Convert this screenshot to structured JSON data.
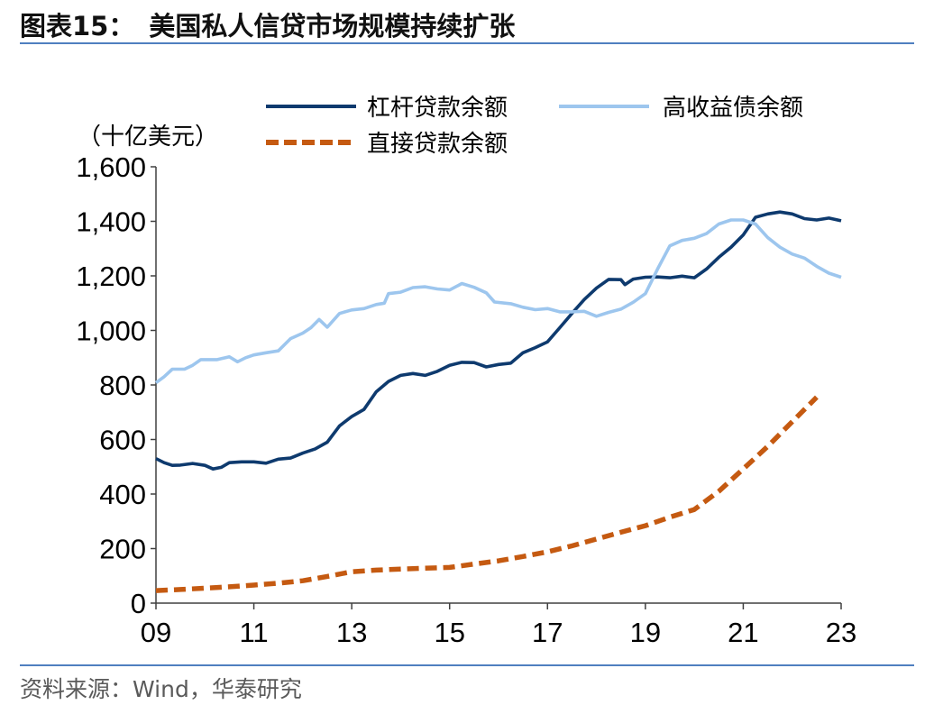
{
  "header": {
    "figure_label": "图表15："
  },
  "colors": {
    "rule": "#4f7fc0",
    "axis": "#404040",
    "source_text": "#5a5a5a"
  },
  "chart_data": {
    "type": "line",
    "title": "美国私人信贷市场规模持续扩张",
    "ylabel": "（十亿美元）",
    "xlim": [
      "2009-01",
      "2023-01"
    ],
    "ylim": [
      0,
      1600
    ],
    "x_ticks": [
      "2009-01",
      "2011-01",
      "2013-01",
      "2015-01",
      "2017-01",
      "2019-01",
      "2021-01",
      "2023-01"
    ],
    "x_tick_labels": [
      "09",
      "11",
      "13",
      "15",
      "17",
      "19",
      "21",
      "23"
    ],
    "y_ticks": [
      0,
      200,
      400,
      600,
      800,
      1000,
      1200,
      1400,
      1600
    ],
    "y_tick_labels": [
      "0",
      "200",
      "400",
      "600",
      "800",
      "1,000",
      "1,200",
      "1,400",
      "1,600"
    ],
    "grid": false,
    "legend": "top",
    "series": [
      {
        "name": "杠杆贷款余额",
        "color": "#0e3a6e",
        "dashed": false,
        "x": [
          "2009-01",
          "2009-03",
          "2009-05",
          "2009-07",
          "2009-10",
          "2010-01",
          "2010-03",
          "2010-05",
          "2010-07",
          "2010-10",
          "2011-01",
          "2011-04",
          "2011-07",
          "2011-10",
          "2012-01",
          "2012-04",
          "2012-07",
          "2012-10",
          "2013-01",
          "2013-04",
          "2013-07",
          "2013-10",
          "2014-01",
          "2014-04",
          "2014-07",
          "2014-10",
          "2015-01",
          "2015-04",
          "2015-07",
          "2015-10",
          "2016-01",
          "2016-04",
          "2016-07",
          "2016-10",
          "2017-01",
          "2017-04",
          "2017-07",
          "2017-10",
          "2018-01",
          "2018-04",
          "2018-07",
          "2018-08",
          "2018-10",
          "2019-01",
          "2019-04",
          "2019-07",
          "2019-10",
          "2020-01",
          "2020-04",
          "2020-07",
          "2020-10",
          "2021-01",
          "2021-04",
          "2021-07",
          "2021-10",
          "2022-01",
          "2022-04",
          "2022-07",
          "2022-10",
          "2023-01"
        ],
        "y": [
          530,
          515,
          505,
          506,
          512,
          505,
          492,
          498,
          515,
          518,
          518,
          513,
          528,
          532,
          550,
          565,
          590,
          650,
          684,
          710,
          775,
          813,
          835,
          842,
          835,
          850,
          872,
          883,
          882,
          866,
          875,
          880,
          918,
          937,
          958,
          1010,
          1062,
          1113,
          1155,
          1187,
          1186,
          1168,
          1188,
          1195,
          1196,
          1193,
          1199,
          1193,
          1225,
          1268,
          1305,
          1350,
          1415,
          1427,
          1434,
          1427,
          1410,
          1405,
          1412,
          1402
        ]
      },
      {
        "name": "高收益债余额",
        "color": "#9dc6ee",
        "dashed": false,
        "x": [
          "2009-01",
          "2009-03",
          "2009-05",
          "2009-08",
          "2009-10",
          "2009-12",
          "2010-04",
          "2010-07",
          "2010-09",
          "2010-11",
          "2011-01",
          "2011-04",
          "2011-07",
          "2011-10",
          "2012-01",
          "2012-03",
          "2012-05",
          "2012-07",
          "2012-10",
          "2013-01",
          "2013-04",
          "2013-07",
          "2013-09",
          "2013-10",
          "2014-01",
          "2014-04",
          "2014-07",
          "2014-10",
          "2015-01",
          "2015-04",
          "2015-07",
          "2015-10",
          "2015-12",
          "2016-04",
          "2016-07",
          "2016-10",
          "2017-01",
          "2017-04",
          "2017-07",
          "2017-10",
          "2018-01",
          "2018-04",
          "2018-07",
          "2018-10",
          "2019-01",
          "2019-04",
          "2019-07",
          "2019-10",
          "2020-01",
          "2020-04",
          "2020-07",
          "2020-10",
          "2021-01",
          "2021-04",
          "2021-07",
          "2021-10",
          "2022-01",
          "2022-04",
          "2022-07",
          "2022-10",
          "2023-01"
        ],
        "y": [
          808,
          830,
          858,
          858,
          872,
          893,
          893,
          903,
          885,
          900,
          910,
          918,
          925,
          970,
          990,
          1010,
          1040,
          1012,
          1062,
          1075,
          1080,
          1095,
          1100,
          1135,
          1140,
          1157,
          1160,
          1152,
          1148,
          1172,
          1158,
          1138,
          1104,
          1098,
          1085,
          1076,
          1080,
          1068,
          1068,
          1070,
          1052,
          1066,
          1078,
          1103,
          1135,
          1225,
          1310,
          1330,
          1338,
          1355,
          1390,
          1405,
          1405,
          1390,
          1340,
          1305,
          1280,
          1265,
          1235,
          1210,
          1195
        ]
      },
      {
        "name": "直接贷款余额",
        "color": "#c55a11",
        "dashed": true,
        "x": [
          "2009-01",
          "2009-07",
          "2010-01",
          "2010-07",
          "2011-01",
          "2011-07",
          "2012-01",
          "2012-07",
          "2013-01",
          "2013-07",
          "2014-01",
          "2014-07",
          "2015-01",
          "2015-07",
          "2016-01",
          "2016-07",
          "2017-01",
          "2017-07",
          "2018-01",
          "2018-07",
          "2019-01",
          "2019-07",
          "2020-01",
          "2020-07",
          "2021-01",
          "2021-07",
          "2022-01",
          "2022-07"
        ],
        "y": [
          46,
          50,
          55,
          60,
          66,
          73,
          82,
          98,
          115,
          121,
          125,
          128,
          131,
          143,
          155,
          171,
          188,
          210,
          235,
          260,
          284,
          315,
          343,
          410,
          492,
          575,
          665,
          755
        ]
      }
    ]
  },
  "source": "资料来源：Wind，华泰研究"
}
